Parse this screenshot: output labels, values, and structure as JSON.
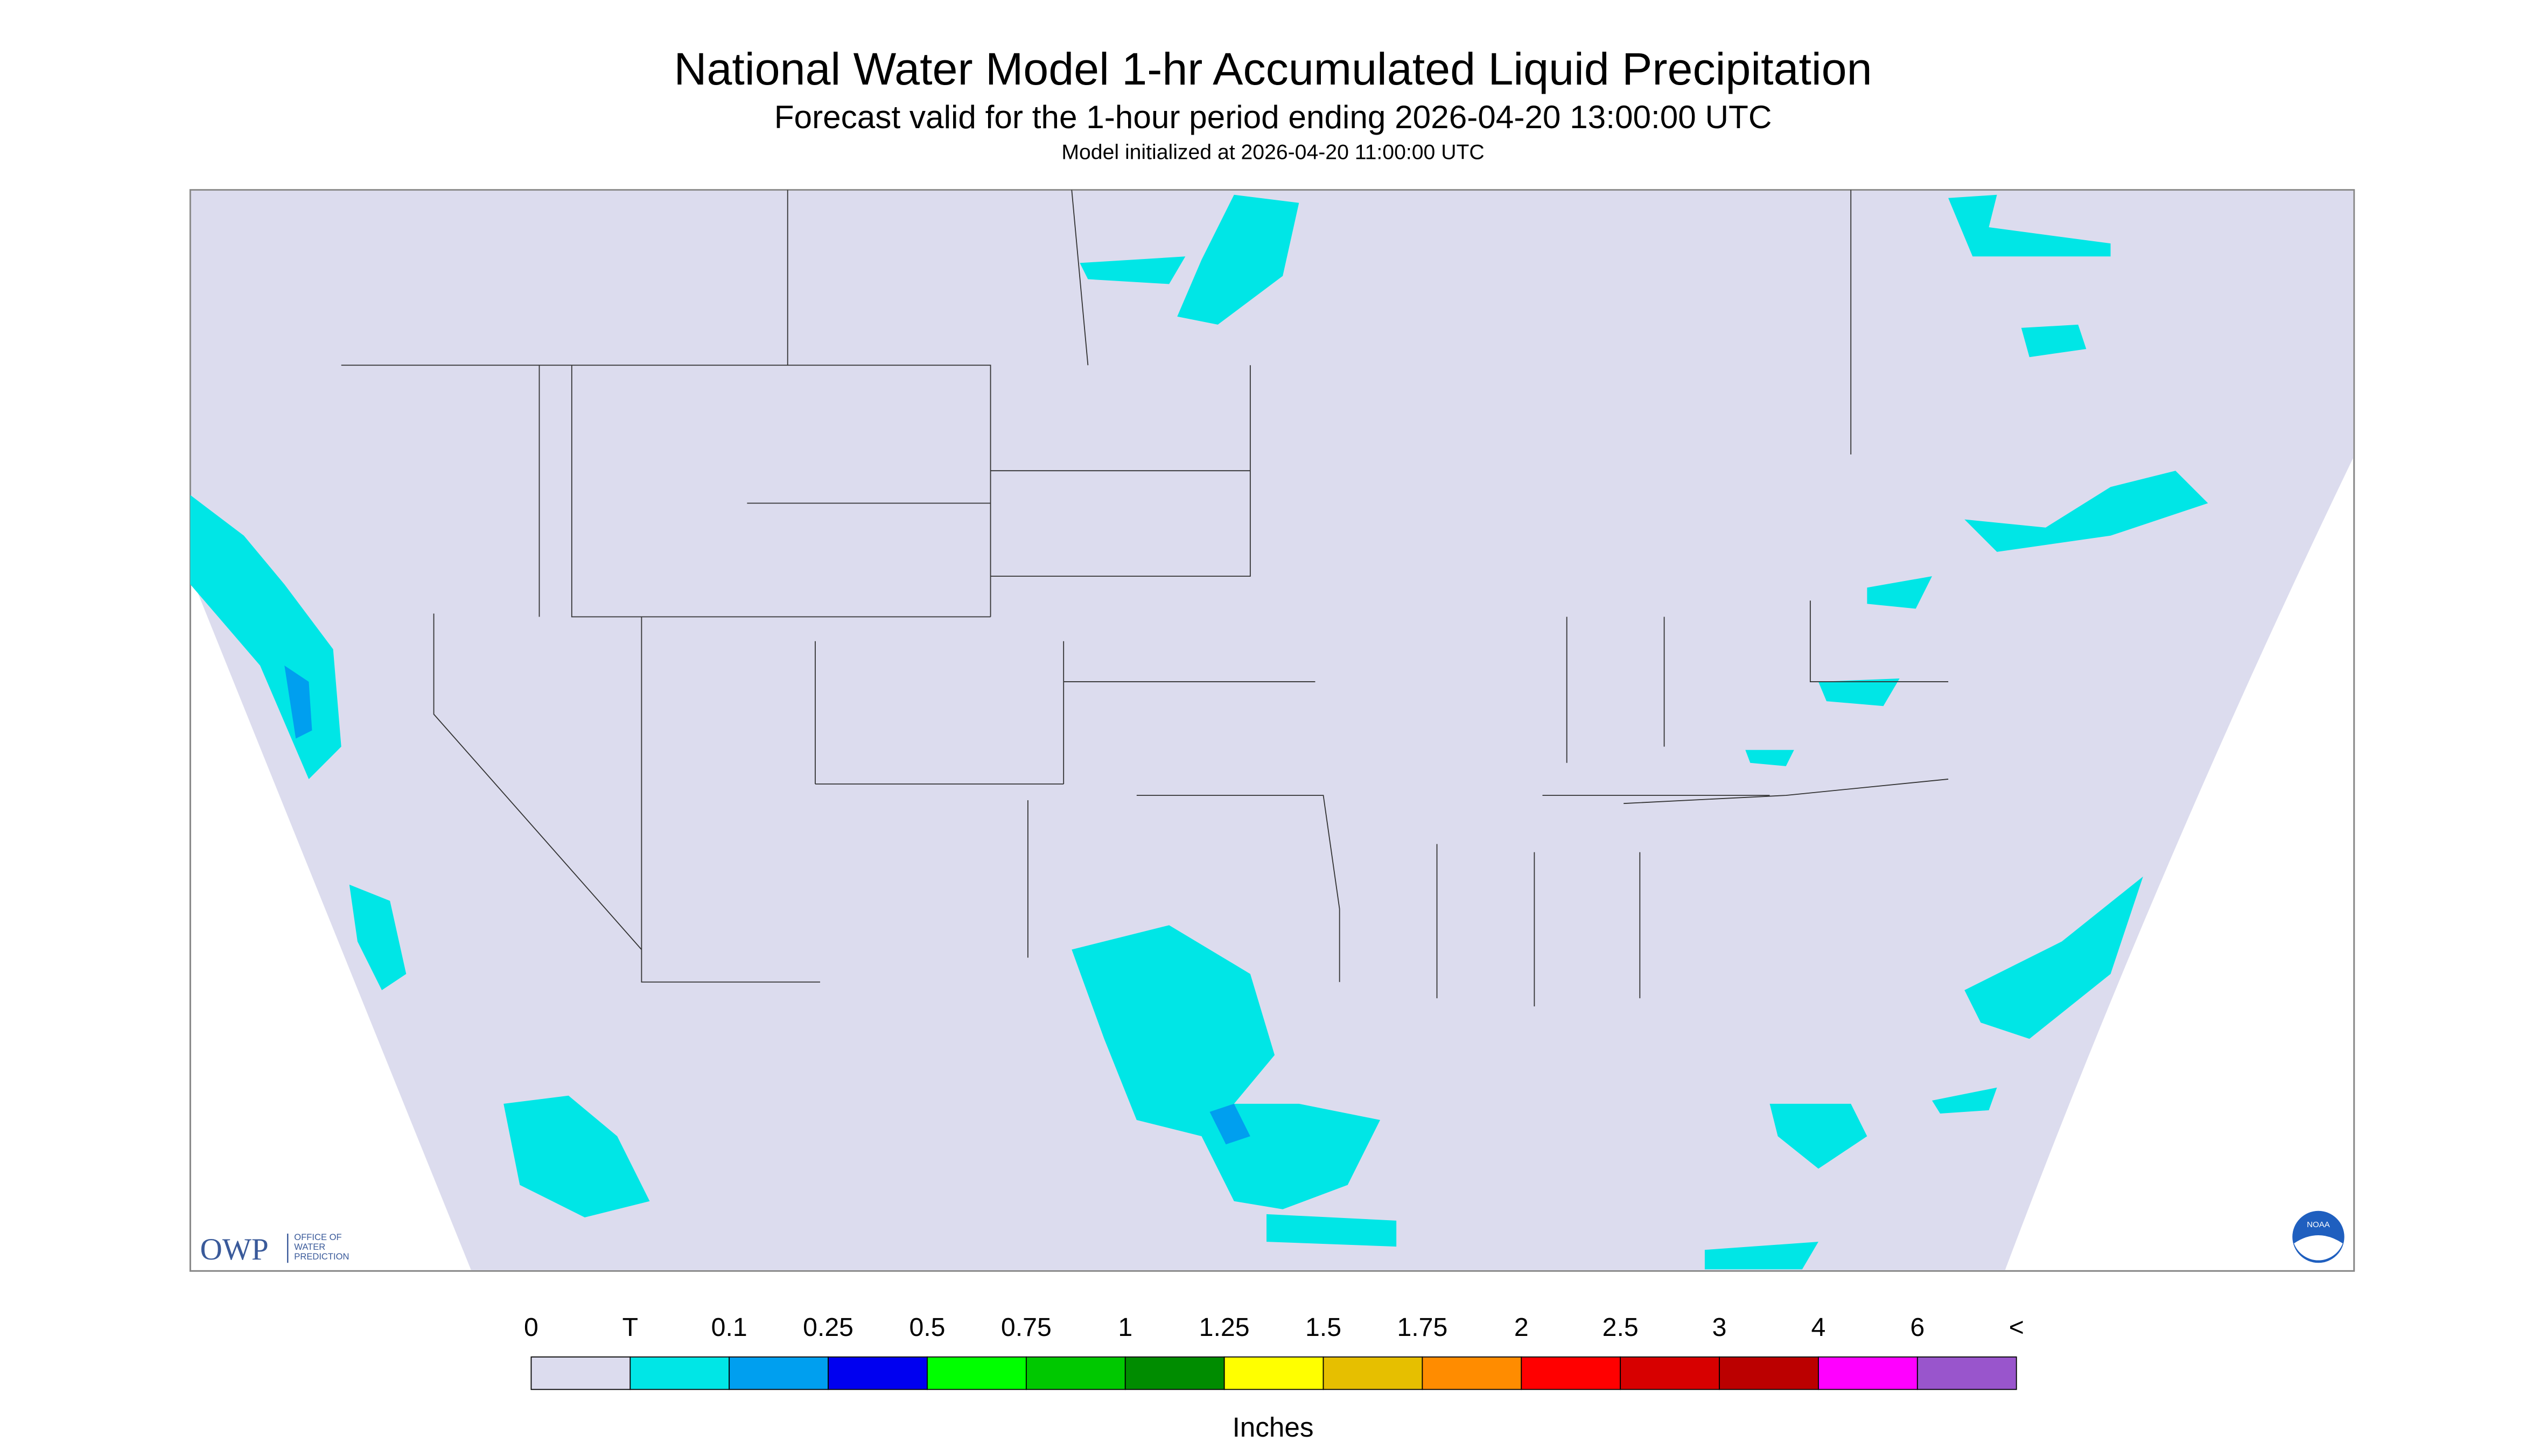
{
  "header": {
    "title": "National Water Model 1-hr Accumulated Liquid Precipitation",
    "subtitle": "Forecast valid for the 1-hour period ending 2026-04-20 13:00:00 UTC",
    "initialized": "Model initialized at 2026-04-20 11:00:00 UTC"
  },
  "legend": {
    "labels": [
      "0",
      "T",
      "0.1",
      "0.25",
      "0.5",
      "0.75",
      "1",
      "1.25",
      "1.5",
      "1.75",
      "2",
      "2.5",
      "3",
      "4",
      "6",
      "<"
    ],
    "colors": [
      "#dcdcee",
      "#00e6e6",
      "#009fef",
      "#0000f0",
      "#00ff00",
      "#00c800",
      "#008c00",
      "#ffff00",
      "#e6bf00",
      "#ff8c00",
      "#ff0000",
      "#d70000",
      "#bb0000",
      "#ff00ff",
      "#9955cc"
    ],
    "unit": "Inches"
  },
  "logos": {
    "owp": "OWP",
    "owp_text": [
      "OFFICE OF",
      "WATER",
      "PREDICTION"
    ],
    "noaa": "NOAA"
  }
}
